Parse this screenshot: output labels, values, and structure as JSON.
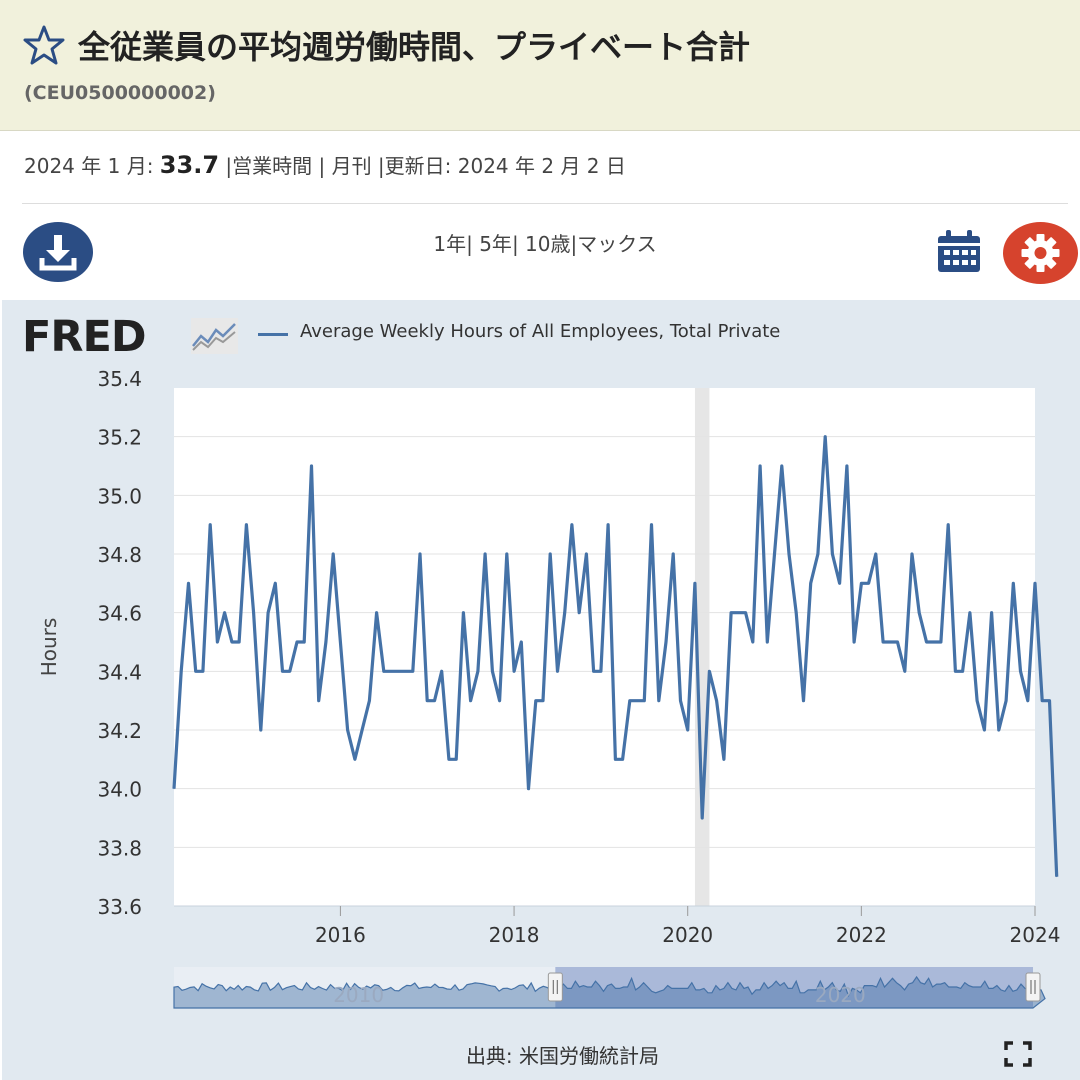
{
  "header": {
    "title": "全従業員の平均週労働時間、プライベート合計",
    "series_id": "(CEU0500000002)",
    "star_icon": "star-outline-icon"
  },
  "meta": {
    "date_prefix": "2024 年 1 月: ",
    "value": "33.7",
    "details": " |営業時間 | 月刊 |更新日: 2024 年 2 月 2 日"
  },
  "toolbar": {
    "download_icon": "download-icon",
    "ranges": [
      "1年",
      "| 5年",
      "| 10歳",
      "|マックス"
    ],
    "calendar_icon": "calendar-icon",
    "settings_icon": "gear-icon"
  },
  "logo": {
    "text": "FRED"
  },
  "source": "出典: 米国労働統計局",
  "colors": {
    "line": "#4572a7",
    "header_bg": "#f1f1dc",
    "panel_bg": "#e1e9f0",
    "icon_blue": "#2b4d84",
    "gear_red": "#d6432d"
  },
  "chart_data": {
    "type": "line",
    "series": [
      {
        "name": "Average Weekly Hours of All Employees, Total Private",
        "start": "2014-02",
        "frequency": "monthly",
        "values": [
          34.0,
          34.4,
          34.7,
          34.4,
          34.4,
          34.9,
          34.5,
          34.6,
          34.5,
          34.5,
          34.9,
          34.6,
          34.2,
          34.6,
          34.7,
          34.4,
          34.4,
          34.5,
          34.5,
          35.1,
          34.3,
          34.5,
          34.8,
          34.5,
          34.2,
          34.1,
          34.2,
          34.3,
          34.6,
          34.4,
          34.4,
          34.4,
          34.4,
          34.4,
          34.8,
          34.3,
          34.3,
          34.4,
          34.1,
          34.1,
          34.6,
          34.3,
          34.4,
          34.8,
          34.4,
          34.3,
          34.8,
          34.4,
          34.5,
          34.0,
          34.3,
          34.3,
          34.8,
          34.4,
          34.6,
          34.9,
          34.6,
          34.8,
          34.4,
          34.4,
          34.9,
          34.1,
          34.1,
          34.3,
          34.3,
          34.3,
          34.9,
          34.3,
          34.5,
          34.8,
          34.3,
          34.2,
          34.7,
          33.9,
          34.4,
          34.3,
          34.1,
          34.6,
          34.6,
          34.6,
          34.5,
          35.1,
          34.5,
          34.8,
          35.1,
          34.8,
          34.6,
          34.3,
          34.7,
          34.8,
          35.2,
          34.8,
          34.7,
          35.1,
          34.5,
          34.7,
          34.7,
          34.8,
          34.5,
          34.5,
          34.5,
          34.4,
          34.8,
          34.6,
          34.5,
          34.5,
          34.5,
          34.9,
          34.4,
          34.4,
          34.6,
          34.3,
          34.2,
          34.6,
          34.2,
          34.3,
          34.7,
          34.4,
          34.3,
          34.7,
          34.3,
          34.3,
          33.7
        ]
      }
    ],
    "x_ticks": [
      "2016",
      "2018",
      "2020",
      "2022",
      "2024"
    ],
    "y_ticks": [
      "33.6",
      "33.8",
      "34.0",
      "34.2",
      "34.4",
      "34.6",
      "34.8",
      "35.0",
      "35.2",
      "35.4"
    ],
    "ylabel": "Hours",
    "ylim": [
      33.6,
      35.4
    ],
    "xlim": [
      "2014-02",
      "2024-01"
    ],
    "recession_shading": [
      "2020-02",
      "2020-04"
    ],
    "grid": true,
    "navigator": {
      "range_labels": [
        "2010",
        "2020"
      ]
    }
  }
}
